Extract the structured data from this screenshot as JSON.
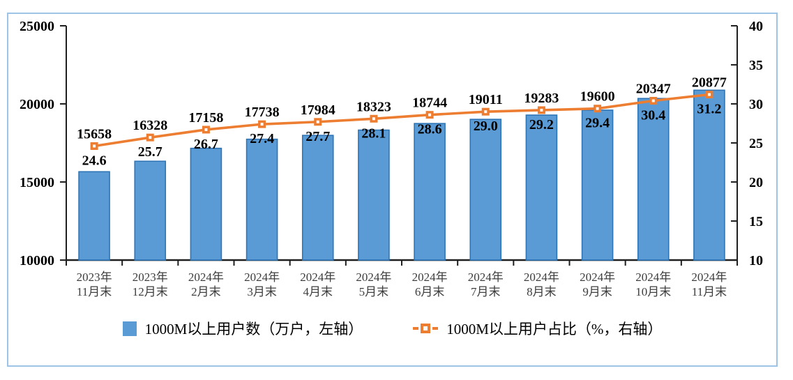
{
  "chart_data": {
    "type": "combo-bar-line",
    "categories": [
      "2023年11月末",
      "2023年12月末",
      "2024年2月末",
      "2024年3月末",
      "2024年4月末",
      "2024年5月末",
      "2024年6月末",
      "2024年7月末",
      "2024年8月末",
      "2024年9月末",
      "2024年10月末",
      "2024年11月末"
    ],
    "categories_two_line": [
      [
        "2023年",
        "11月末"
      ],
      [
        "2023年",
        "12月末"
      ],
      [
        "2024年",
        "2月末"
      ],
      [
        "2024年",
        "3月末"
      ],
      [
        "2024年",
        "4月末"
      ],
      [
        "2024年",
        "5月末"
      ],
      [
        "2024年",
        "6月末"
      ],
      [
        "2024年",
        "7月末"
      ],
      [
        "2024年",
        "8月末"
      ],
      [
        "2024年",
        "9月末"
      ],
      [
        "2024年",
        "10月末"
      ],
      [
        "2024年",
        "11月末"
      ]
    ],
    "series": [
      {
        "name": "1000M以上用户数（万户，左轴）",
        "type": "bar",
        "axis": "left",
        "values": [
          15658,
          16328,
          17158,
          17738,
          17984,
          18323,
          18744,
          19011,
          19283,
          19600,
          20347,
          20877
        ],
        "labels": [
          "15658",
          "16328",
          "17158",
          "17738",
          "17984",
          "18323",
          "18744",
          "19011",
          "19283",
          "19600",
          "20347",
          "20877"
        ]
      },
      {
        "name": "1000M以上用户占比（%，右轴）",
        "type": "line",
        "axis": "right",
        "values": [
          24.6,
          25.7,
          26.7,
          27.4,
          27.7,
          28.1,
          28.6,
          29.0,
          29.2,
          29.4,
          30.4,
          31.2
        ],
        "labels": [
          "24.6",
          "25.7",
          "26.7",
          "27.4",
          "27.7",
          "28.1",
          "28.6",
          "29.0",
          "29.2",
          "29.4",
          "30.4",
          "31.2"
        ]
      }
    ],
    "left_axis": {
      "min": 10000,
      "max": 25000,
      "step": 5000,
      "ticks": [
        25000,
        20000,
        15000,
        10000
      ]
    },
    "right_axis": {
      "min": 10,
      "max": 40,
      "step": 5,
      "ticks": [
        40,
        35,
        30,
        25,
        20,
        15,
        10
      ]
    },
    "legend_position": "bottom",
    "grid": false,
    "colors": {
      "bar_fill": "#5B9BD5",
      "bar_border": "#2E75B6",
      "line": "#ED7D31",
      "marker_center": "#FFFFFF",
      "frame_border": "#9DC3E6",
      "axis": "#1F1F1F",
      "data_label": "#000000",
      "category_label": "#3D3D3D"
    }
  }
}
